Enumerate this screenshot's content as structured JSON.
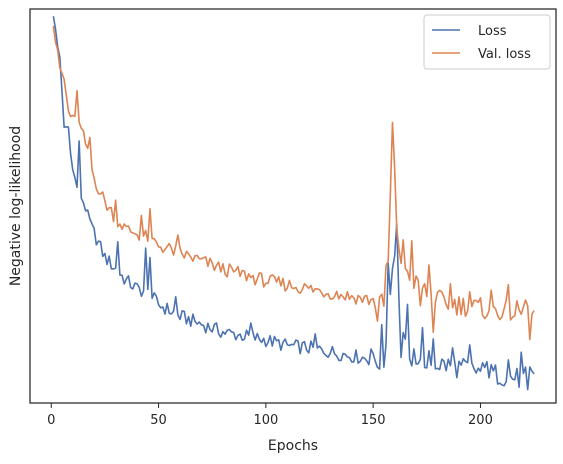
{
  "chart_data": {
    "type": "line",
    "title": "",
    "xlabel": "Epochs",
    "ylabel": "Negative log-likelihood",
    "xlim": [
      -9.9,
      235.2
    ],
    "ylim": [
      0.0,
      1.0
    ],
    "y_ticks_labeled": false,
    "x_ticks": [
      0,
      50,
      100,
      150,
      200
    ],
    "grid": false,
    "legend_position": "top-right",
    "colors": {
      "Loss": "#4c72b0",
      "Val. loss": "#dd8452"
    },
    "series": [
      {
        "name": "Loss",
        "anchors": [
          [
            1,
            0.98
          ],
          [
            2,
            0.95
          ],
          [
            4,
            0.87
          ],
          [
            6,
            0.7
          ],
          [
            8,
            0.7
          ],
          [
            10,
            0.59
          ],
          [
            12,
            0.55
          ],
          [
            15,
            0.51
          ],
          [
            20,
            0.43
          ],
          [
            25,
            0.37
          ],
          [
            30,
            0.34
          ],
          [
            35,
            0.31
          ],
          [
            40,
            0.29
          ],
          [
            45,
            0.28
          ],
          [
            50,
            0.25
          ],
          [
            60,
            0.22
          ],
          [
            70,
            0.2
          ],
          [
            80,
            0.18
          ],
          [
            90,
            0.17
          ],
          [
            100,
            0.16
          ],
          [
            110,
            0.145
          ],
          [
            120,
            0.14
          ],
          [
            130,
            0.13
          ],
          [
            140,
            0.12
          ],
          [
            150,
            0.11
          ],
          [
            155,
            0.1
          ],
          [
            158,
            0.3
          ],
          [
            160,
            0.38
          ],
          [
            162,
            0.25
          ],
          [
            165,
            0.14
          ],
          [
            170,
            0.12
          ],
          [
            175,
            0.11
          ],
          [
            180,
            0.1
          ],
          [
            190,
            0.09
          ],
          [
            200,
            0.08
          ],
          [
            210,
            0.07
          ],
          [
            220,
            0.06
          ],
          [
            225,
            0.08
          ]
        ],
        "spikes": [
          [
            13,
            0.12
          ],
          [
            31,
            0.08
          ],
          [
            44,
            0.1
          ],
          [
            46,
            0.11
          ],
          [
            58,
            0.04
          ],
          [
            93,
            0.03
          ],
          [
            123,
            0.03
          ],
          [
            149,
            0.03
          ],
          [
            154,
            0.07
          ],
          [
            157,
            0.12
          ],
          [
            161,
            0.16
          ],
          [
            163,
            -0.08
          ],
          [
            166,
            0.09
          ],
          [
            168,
            -0.06
          ],
          [
            173,
            0.06
          ],
          [
            175,
            -0.04
          ],
          [
            178,
            0.06
          ],
          [
            187,
            0.04
          ],
          [
            195,
            0.05
          ],
          [
            203,
            0.05
          ],
          [
            213,
            0.04
          ],
          [
            219,
            0.05
          ],
          [
            222,
            -0.05
          ]
        ]
      },
      {
        "name": "Val. loss",
        "anchors": [
          [
            1,
            0.96
          ],
          [
            2,
            0.92
          ],
          [
            4,
            0.85
          ],
          [
            6,
            0.82
          ],
          [
            8,
            0.74
          ],
          [
            10,
            0.72
          ],
          [
            12,
            0.72
          ],
          [
            15,
            0.68
          ],
          [
            20,
            0.57
          ],
          [
            25,
            0.51
          ],
          [
            30,
            0.47
          ],
          [
            35,
            0.44
          ],
          [
            40,
            0.43
          ],
          [
            45,
            0.42
          ],
          [
            50,
            0.4
          ],
          [
            60,
            0.38
          ],
          [
            70,
            0.36
          ],
          [
            80,
            0.34
          ],
          [
            90,
            0.325
          ],
          [
            100,
            0.31
          ],
          [
            110,
            0.3
          ],
          [
            120,
            0.29
          ],
          [
            130,
            0.28
          ],
          [
            140,
            0.27
          ],
          [
            150,
            0.26
          ],
          [
            155,
            0.25
          ],
          [
            157,
            0.35
          ],
          [
            159,
            0.7
          ],
          [
            161,
            0.45
          ],
          [
            163,
            0.36
          ],
          [
            167,
            0.33
          ],
          [
            170,
            0.3
          ],
          [
            175,
            0.28
          ],
          [
            180,
            0.26
          ],
          [
            190,
            0.25
          ],
          [
            200,
            0.24
          ],
          [
            210,
            0.235
          ],
          [
            220,
            0.23
          ],
          [
            225,
            0.22
          ]
        ],
        "spikes": [
          [
            12,
            0.08
          ],
          [
            18,
            0.06
          ],
          [
            30,
            0.04
          ],
          [
            42,
            0.05
          ],
          [
            46,
            0.06
          ],
          [
            59,
            0.03
          ],
          [
            152,
            -0.04
          ],
          [
            156,
            0.04
          ],
          [
            164,
            0.04
          ],
          [
            168,
            0.08
          ],
          [
            172,
            -0.04
          ],
          [
            176,
            0.07
          ],
          [
            178,
            -0.07
          ],
          [
            186,
            0.04
          ],
          [
            195,
            0.04
          ],
          [
            205,
            0.03
          ],
          [
            213,
            0.04
          ],
          [
            221,
            0.04
          ],
          [
            223,
            -0.04
          ]
        ]
      }
    ]
  }
}
